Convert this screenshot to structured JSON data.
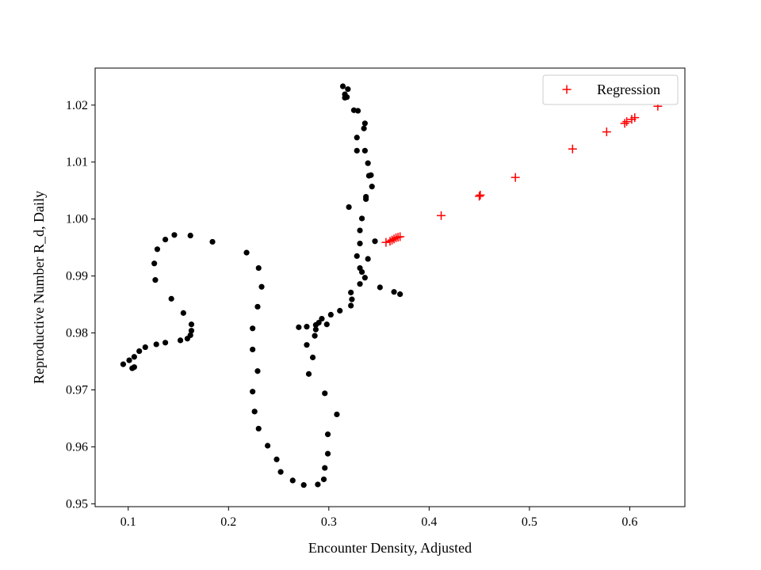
{
  "chart_data": {
    "type": "scatter",
    "xlabel": "Encounter Density, Adjusted",
    "ylabel": "Reproductive Number R_d, Daily",
    "xlim": [
      0.067,
      0.655
    ],
    "ylim": [
      0.9495,
      1.0265
    ],
    "x_ticks": [
      0.1,
      0.2,
      0.3,
      0.4,
      0.5,
      0.6
    ],
    "x_tick_labels": [
      "0.1",
      "0.2",
      "0.3",
      "0.4",
      "0.5",
      "0.6"
    ],
    "y_ticks": [
      0.95,
      0.96,
      0.97,
      0.98,
      0.99,
      1.0,
      1.01,
      1.02
    ],
    "y_tick_labels": [
      "0.95",
      "0.96",
      "0.97",
      "0.98",
      "0.99",
      "1.00",
      "1.01",
      "1.02"
    ],
    "grid": false,
    "legend_position": "top-right",
    "series": [
      {
        "marker": "circle",
        "color": "#000000",
        "points": [
          [
            0.095,
            0.9745
          ],
          [
            0.101,
            0.9752
          ],
          [
            0.104,
            0.9738
          ],
          [
            0.106,
            0.974
          ],
          [
            0.106,
            0.9758
          ],
          [
            0.111,
            0.9768
          ],
          [
            0.117,
            0.9775
          ],
          [
            0.128,
            0.978
          ],
          [
            0.137,
            0.9783
          ],
          [
            0.152,
            0.9787
          ],
          [
            0.159,
            0.979
          ],
          [
            0.162,
            0.9796
          ],
          [
            0.163,
            0.9804
          ],
          [
            0.163,
            0.9815
          ],
          [
            0.155,
            0.9835
          ],
          [
            0.143,
            0.986
          ],
          [
            0.127,
            0.9893
          ],
          [
            0.126,
            0.9922
          ],
          [
            0.129,
            0.9947
          ],
          [
            0.137,
            0.9964
          ],
          [
            0.146,
            0.9972
          ],
          [
            0.162,
            0.9971
          ],
          [
            0.184,
            0.996
          ],
          [
            0.218,
            0.9941
          ],
          [
            0.23,
            0.9914
          ],
          [
            0.233,
            0.9881
          ],
          [
            0.229,
            0.9846
          ],
          [
            0.224,
            0.9808
          ],
          [
            0.224,
            0.9771
          ],
          [
            0.229,
            0.9733
          ],
          [
            0.224,
            0.9697
          ],
          [
            0.226,
            0.9662
          ],
          [
            0.23,
            0.9632
          ],
          [
            0.239,
            0.9602
          ],
          [
            0.248,
            0.9578
          ],
          [
            0.252,
            0.9556
          ],
          [
            0.264,
            0.9541
          ],
          [
            0.275,
            0.9533
          ],
          [
            0.289,
            0.9534
          ],
          [
            0.295,
            0.9543
          ],
          [
            0.296,
            0.9563
          ],
          [
            0.299,
            0.9588
          ],
          [
            0.299,
            0.9622
          ],
          [
            0.308,
            0.9657
          ],
          [
            0.296,
            0.9694
          ],
          [
            0.28,
            0.9728
          ],
          [
            0.284,
            0.9757
          ],
          [
            0.278,
            0.9779
          ],
          [
            0.286,
            0.9795
          ],
          [
            0.287,
            0.9806
          ],
          [
            0.287,
            0.9814
          ],
          [
            0.27,
            0.981
          ],
          [
            0.278,
            0.9811
          ],
          [
            0.29,
            0.9818
          ],
          [
            0.293,
            0.9825
          ],
          [
            0.298,
            0.9815
          ],
          [
            0.302,
            0.9832
          ],
          [
            0.311,
            0.9839
          ],
          [
            0.322,
            0.9848
          ],
          [
            0.323,
            0.9859
          ],
          [
            0.322,
            0.9871
          ],
          [
            0.331,
            0.9886
          ],
          [
            0.336,
            0.9897
          ],
          [
            0.333,
            0.9907
          ],
          [
            0.331,
            0.9914
          ],
          [
            0.328,
            0.9935
          ],
          [
            0.339,
            0.993
          ],
          [
            0.346,
            0.9961
          ],
          [
            0.331,
            0.9957
          ],
          [
            0.331,
            0.998
          ],
          [
            0.333,
            1.0001
          ],
          [
            0.32,
            1.0021
          ],
          [
            0.337,
            1.0035
          ],
          [
            0.337,
            1.0039
          ],
          [
            0.343,
            1.0057
          ],
          [
            0.34,
            1.0076
          ],
          [
            0.342,
            1.0077
          ],
          [
            0.339,
            1.0098
          ],
          [
            0.336,
            1.012
          ],
          [
            0.328,
            1.012
          ],
          [
            0.328,
            1.0143
          ],
          [
            0.335,
            1.0159
          ],
          [
            0.336,
            1.0168
          ],
          [
            0.325,
            1.0191
          ],
          [
            0.329,
            1.019
          ],
          [
            0.316,
            1.0213
          ],
          [
            0.318,
            1.0214
          ],
          [
            0.316,
            1.0219
          ],
          [
            0.319,
            1.0228
          ],
          [
            0.314,
            1.0233
          ],
          [
            0.351,
            0.988
          ],
          [
            0.365,
            0.9872
          ],
          [
            0.371,
            0.9868
          ]
        ]
      },
      {
        "name": "Regression",
        "marker": "plus",
        "color": "#ff0000",
        "points": [
          [
            0.357,
            0.9959
          ],
          [
            0.361,
            0.9961
          ],
          [
            0.363,
            0.9963
          ],
          [
            0.365,
            0.9965
          ],
          [
            0.367,
            0.9967
          ],
          [
            0.369,
            0.9968
          ],
          [
            0.371,
            0.9969
          ],
          [
            0.412,
            1.0006
          ],
          [
            0.45,
            1.004
          ],
          [
            0.451,
            1.0042
          ],
          [
            0.486,
            1.0073
          ],
          [
            0.543,
            1.0123
          ],
          [
            0.577,
            1.0153
          ],
          [
            0.595,
            1.0168
          ],
          [
            0.597,
            1.0171
          ],
          [
            0.602,
            1.0175
          ],
          [
            0.605,
            1.0178
          ],
          [
            0.628,
            1.0198
          ]
        ]
      }
    ]
  }
}
